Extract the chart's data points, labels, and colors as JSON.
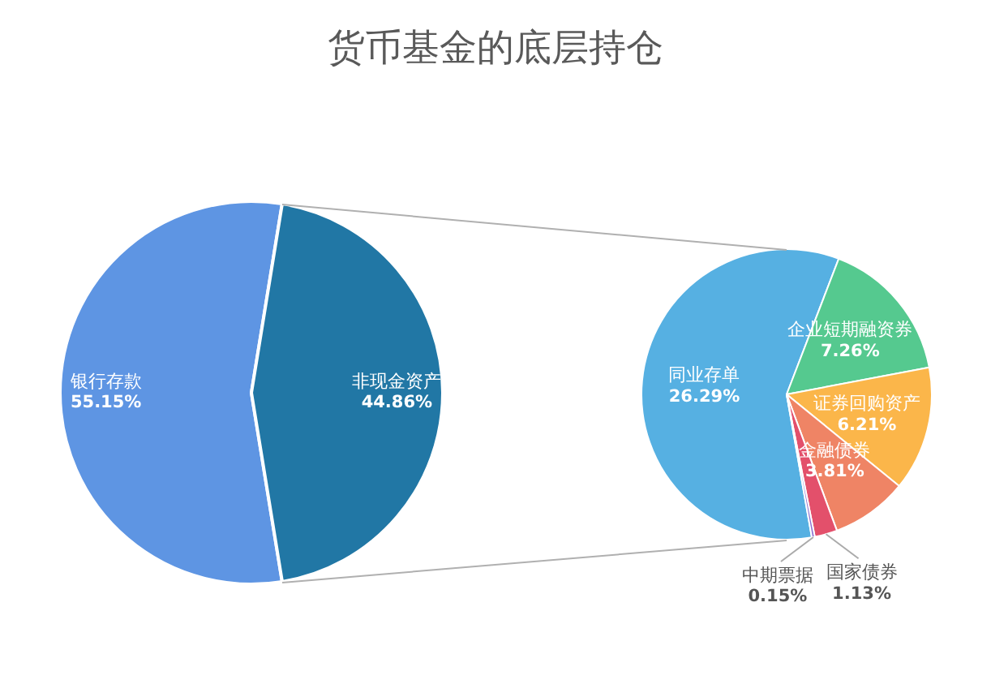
{
  "chart_data": [
    {
      "type": "pie",
      "title": "货币基金的底层持仓",
      "categories": [
        "银行存款",
        "非现金资产"
      ],
      "values": [
        55.15,
        44.86
      ],
      "colors": [
        "#5e95e3",
        "#2177a5"
      ],
      "value_labels": [
        "55.15%",
        "44.86%"
      ]
    },
    {
      "type": "pie",
      "categories": [
        "同业存单",
        "企业短期融资券",
        "证券回购资产",
        "金融债券",
        "国家债券",
        "中期票据"
      ],
      "values": [
        26.29,
        7.26,
        6.21,
        3.81,
        1.13,
        0.15
      ],
      "colors": [
        "#56b0e2",
        "#55c98f",
        "#fbb64a",
        "#ef8465",
        "#e3506b",
        "#8d6fd1"
      ],
      "value_labels": [
        "26.29%",
        "7.26%",
        "6.21%",
        "3.81%",
        "1.13%",
        "0.15%"
      ]
    }
  ]
}
